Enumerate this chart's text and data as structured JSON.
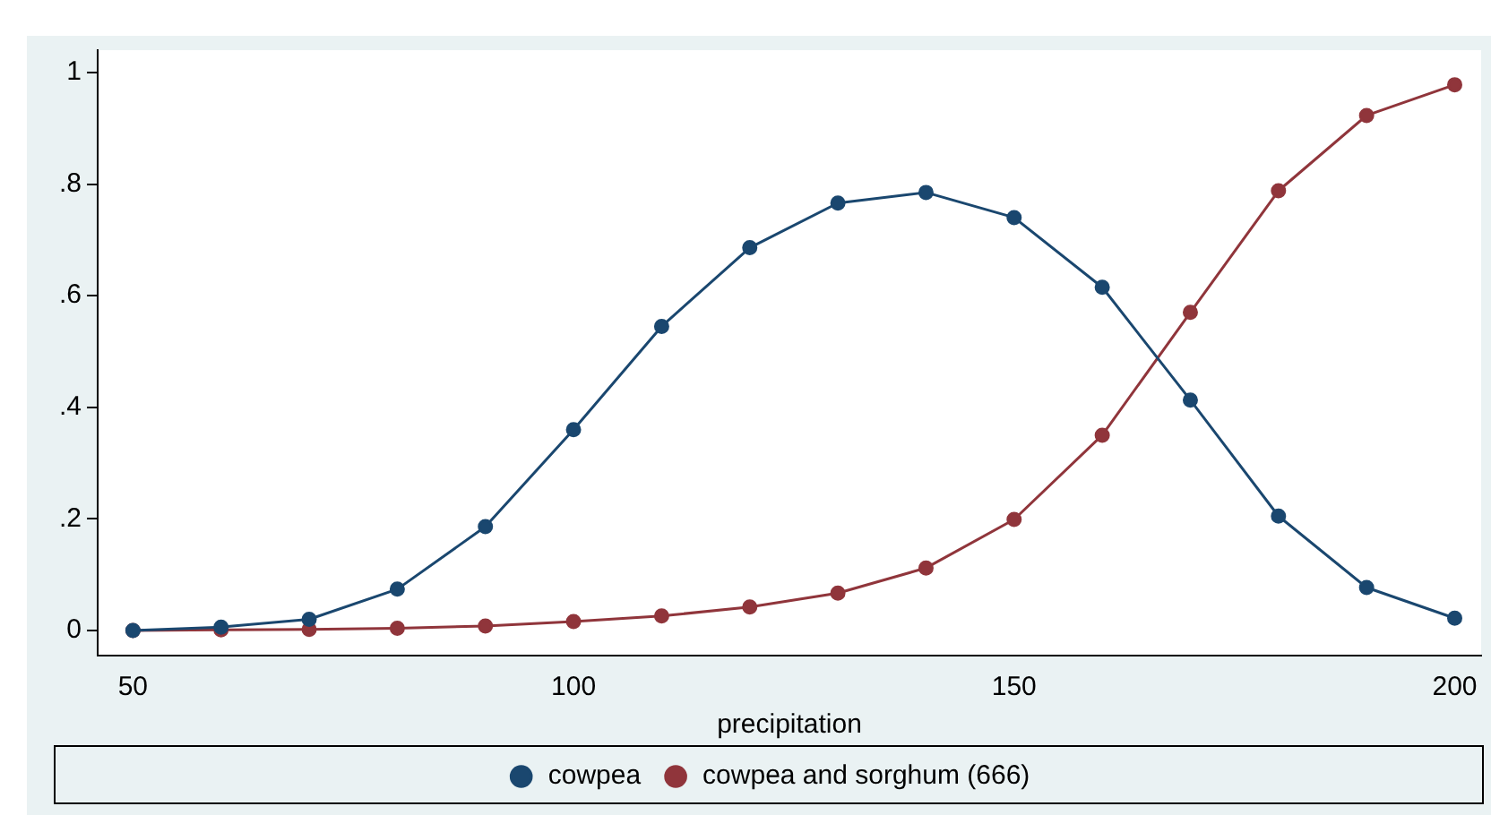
{
  "chart_data": {
    "type": "line",
    "xlabel": "precipitation",
    "x": [
      50,
      60,
      70,
      80,
      90,
      100,
      110,
      120,
      130,
      140,
      150,
      160,
      170,
      180,
      190,
      200
    ],
    "series": [
      {
        "name": "cowpea",
        "color": "#1a476f",
        "values": [
          0,
          0.006,
          0.02,
          0.074,
          0.186,
          0.36,
          0.545,
          0.686,
          0.766,
          0.785,
          0.74,
          0.615,
          0.413,
          0.205,
          0.077,
          0.022
        ]
      },
      {
        "name": "cowpea and sorghum (666)",
        "color": "#90353b",
        "values": [
          0,
          0.001,
          0.002,
          0.004,
          0.008,
          0.016,
          0.026,
          0.042,
          0.067,
          0.112,
          0.199,
          0.35,
          0.57,
          0.788,
          0.923,
          0.978
        ]
      }
    ],
    "xlim": [
      46,
      203
    ],
    "xticks": [
      50,
      100,
      150,
      200
    ],
    "ylim": [
      -0.045,
      1.04
    ],
    "yticks": [
      0,
      {
        "value": 0.2,
        "label": ".2"
      },
      {
        "value": 0.4,
        "label": ".4"
      },
      {
        "value": 0.6,
        "label": ".6"
      },
      {
        "value": 0.8,
        "label": ".8"
      },
      1
    ],
    "grid": false,
    "legend": "bottom",
    "marker": "circle",
    "line_style": "solid"
  }
}
